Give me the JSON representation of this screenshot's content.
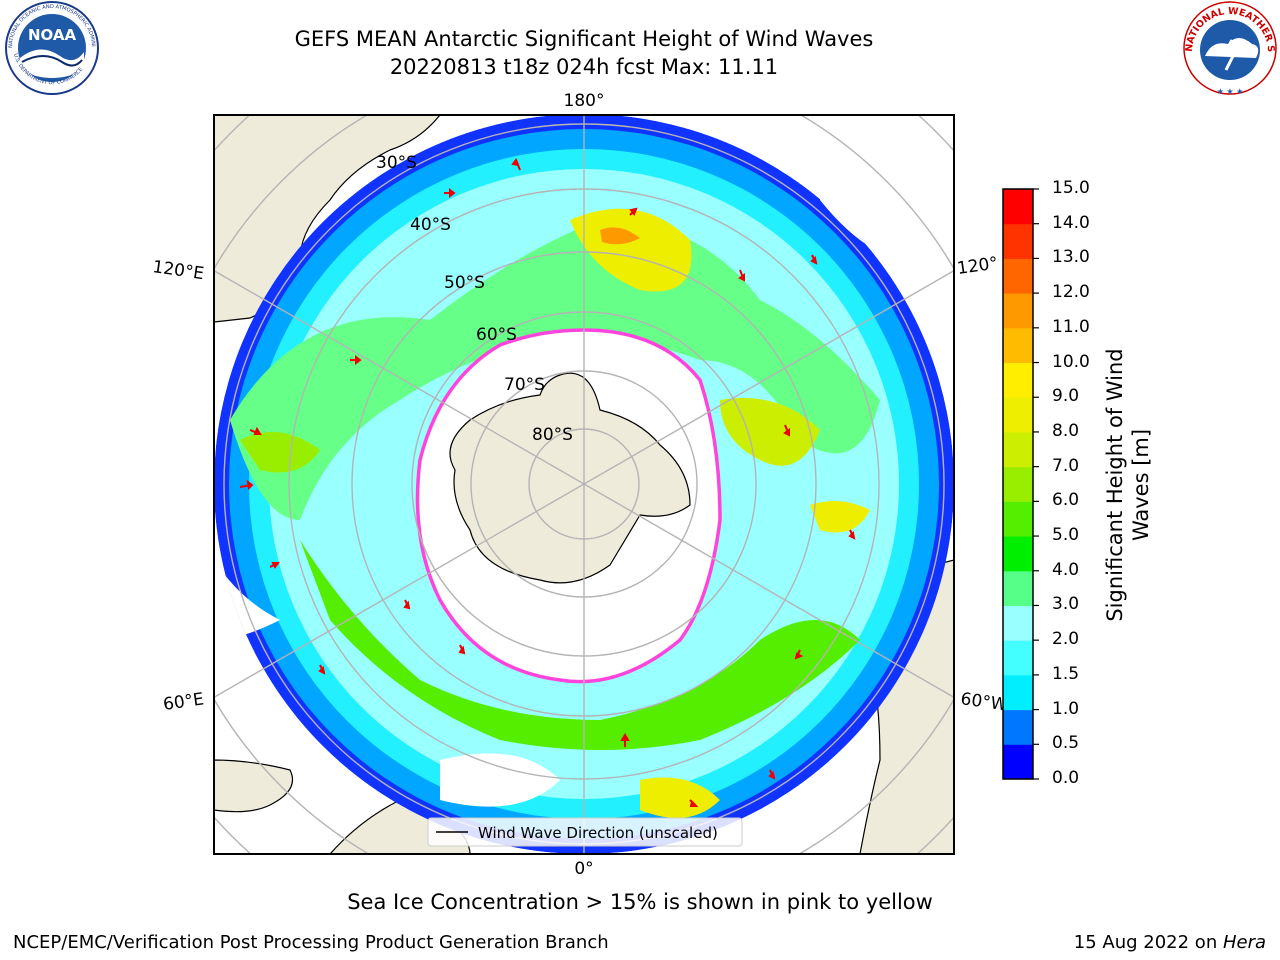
{
  "title": {
    "line1": "GEFS MEAN Antarctic Significant Height of Wind Waves",
    "line2": "20220813 t18z 024h fcst   Max: 11.11"
  },
  "logos": {
    "noaa_text": "NOAA",
    "noaa_ring": "NATIONAL OCEANIC AND ATMOSPHERIC ADMINISTRATION",
    "noaa_ring_bottom": "U.S. DEPARTMENT OF COMMERCE",
    "nws_ring": "NATIONAL WEATHER SERVICE"
  },
  "map": {
    "longitude_labels": {
      "top": "180°",
      "bottom": "0°",
      "upper_left": "120°E",
      "upper_right": "120°",
      "lower_left": "60°E",
      "lower_right": "60°W"
    },
    "latitude_labels": [
      "30°S",
      "40°S",
      "50°S",
      "60°S",
      "70°S",
      "80°S"
    ],
    "legend": "Wind Wave Direction (unscaled)",
    "colors": {
      "land": "#efebdb",
      "ocean_calm": "#ffffff",
      "sea_ice_edge": "#ff44dd",
      "arrows": "#ee0000",
      "graticule": "#b4b4b4"
    }
  },
  "colorbar": {
    "label_line1": "Significant Height of Wind",
    "label_line2": "Waves [m]",
    "ticks": [
      "15.0",
      "14.0",
      "13.0",
      "12.0",
      "11.0",
      "10.0",
      "9.0",
      "8.0",
      "7.0",
      "6.0",
      "5.0",
      "4.0",
      "3.0",
      "2.0",
      "1.5",
      "1.0",
      "0.5",
      "0.0"
    ],
    "colors": [
      "#0000ff",
      "#0077ff",
      "#00eeff",
      "#44ffff",
      "#99ffff",
      "#55ff88",
      "#00ee00",
      "#55ee00",
      "#99ee00",
      "#ccee00",
      "#eeee00",
      "#ffee00",
      "#ffbb00",
      "#ff9900",
      "#ff6600",
      "#ff3300",
      "#ff0000"
    ]
  },
  "caption": "Sea Ice Concentration > 15% is shown in pink to yellow",
  "footer": {
    "left": "NCEP/EMC/Verification Post Processing Product Generation Branch",
    "right_prefix": "15 Aug 2022 on ",
    "right_host": "Hera"
  }
}
